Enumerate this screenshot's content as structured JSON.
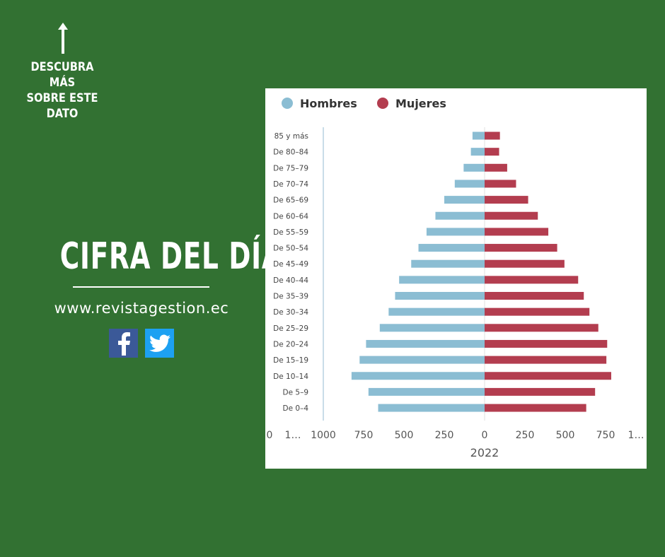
{
  "cta": {
    "lines": [
      "DESCUBRA MÁS",
      "SOBRE ESTE",
      "DATO"
    ],
    "arrow_icon": "arrow-up-icon"
  },
  "title": "CIFRA DEL DÍA",
  "website": "www.revistagestion.ec",
  "social": {
    "facebook_icon": "facebook-icon",
    "twitter_icon": "twitter-icon",
    "facebook_color": "#3b5998",
    "twitter_color": "#1da1f2"
  },
  "colors": {
    "background": "#327132",
    "hombres": "#8bbdd3",
    "mujeres": "#b33d4f"
  },
  "chart_data": {
    "type": "bar",
    "orientation": "horizontal",
    "layout": "population-pyramid",
    "legend": [
      "Hombres",
      "Mujeres"
    ],
    "legend_position": "top-left",
    "categories": [
      "85 y más",
      "De 80–84",
      "De 75–79",
      "De 70–74",
      "De 65–69",
      "De 60–64",
      "De 55–59",
      "De 50–54",
      "De 45–49",
      "De 40–44",
      "De 35–39",
      "De 30–34",
      "De 25–29",
      "De 20–24",
      "De 15–19",
      "De 10–14",
      "De 5–9",
      "De 0–4"
    ],
    "series": [
      {
        "name": "Hombres",
        "values": [
          75,
          85,
          130,
          185,
          250,
          305,
          360,
          410,
          455,
          530,
          555,
          595,
          650,
          735,
          775,
          825,
          720,
          660
        ]
      },
      {
        "name": "Mujeres",
        "values": [
          95,
          90,
          140,
          195,
          270,
          330,
          395,
          450,
          495,
          580,
          615,
          650,
          705,
          760,
          755,
          785,
          685,
          630
        ]
      }
    ],
    "xlim": [
      -1000,
      1000
    ],
    "x_ticks": [
      "0",
      "1…",
      "1000",
      "750",
      "500",
      "250",
      "0",
      "250",
      "500",
      "750",
      "1…"
    ],
    "x_tick_values": [
      null,
      null,
      -1000,
      -750,
      -500,
      -250,
      0,
      250,
      500,
      750,
      null
    ],
    "xlabel": "2022",
    "grid": false
  }
}
